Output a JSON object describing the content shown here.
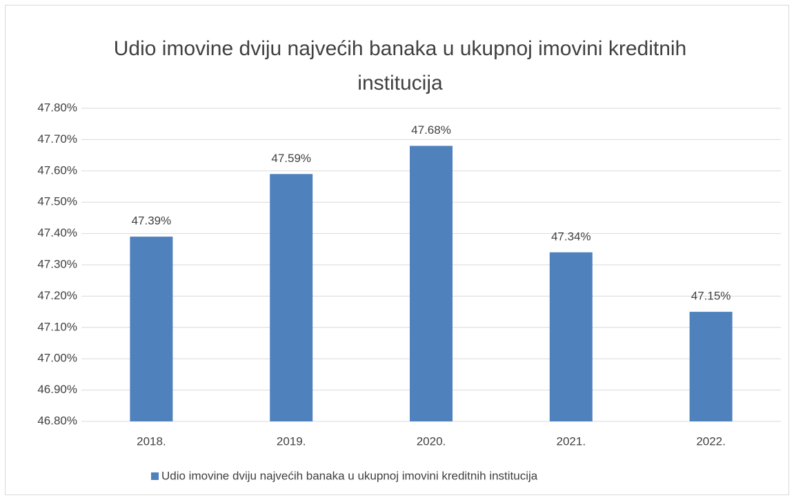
{
  "chart_data": {
    "type": "bar",
    "title": "Udio imovine dviju najvećih banaka u ukupnoj imovini kreditnih institucija",
    "categories": [
      "2018.",
      "2019.",
      "2020.",
      "2021.",
      "2022."
    ],
    "series": [
      {
        "name": "Udio imovine dviju najvećih banaka u ukupnoj imovini kreditnih institucija",
        "color": "#4f81bd",
        "values": [
          47.39,
          47.59,
          47.68,
          47.34,
          47.15
        ],
        "value_labels": [
          "47.39%",
          "47.59%",
          "47.68%",
          "47.34%",
          "47.15%"
        ]
      }
    ],
    "ylim": [
      46.8,
      47.8
    ],
    "yticks": [
      {
        "value": 46.8,
        "label": "46.80%"
      },
      {
        "value": 46.9,
        "label": "46.90%"
      },
      {
        "value": 47.0,
        "label": "47.00%"
      },
      {
        "value": 47.1,
        "label": "47.10%"
      },
      {
        "value": 47.2,
        "label": "47.20%"
      },
      {
        "value": 47.3,
        "label": "47.30%"
      },
      {
        "value": 47.4,
        "label": "47.40%"
      },
      {
        "value": 47.5,
        "label": "47.50%"
      },
      {
        "value": 47.6,
        "label": "47.60%"
      },
      {
        "value": 47.7,
        "label": "47.70%"
      },
      {
        "value": 47.8,
        "label": "47.80%"
      }
    ],
    "grid": true,
    "legend": "bottom"
  }
}
